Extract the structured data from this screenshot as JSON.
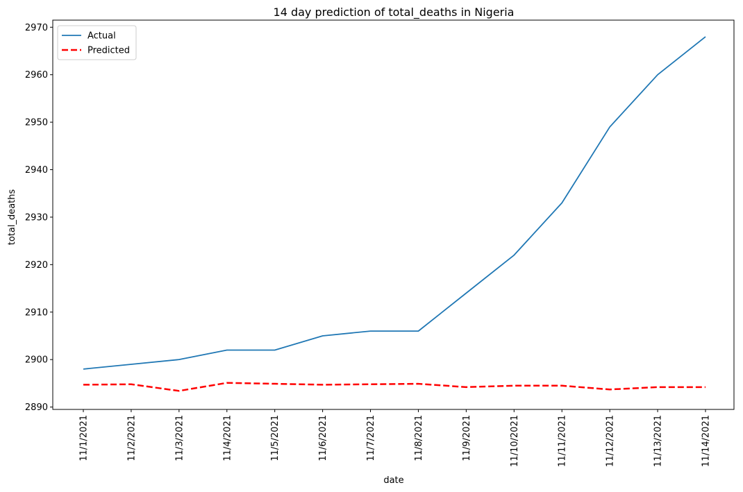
{
  "chart_data": {
    "type": "line",
    "title": "14 day prediction of total_deaths in Nigeria",
    "xlabel": "date",
    "ylabel": "total_deaths",
    "categories": [
      "11/1/2021",
      "11/2/2021",
      "11/3/2021",
      "11/4/2021",
      "11/5/2021",
      "11/6/2021",
      "11/7/2021",
      "11/8/2021",
      "11/9/2021",
      "11/10/2021",
      "11/11/2021",
      "11/12/2021",
      "11/13/2021",
      "11/14/2021"
    ],
    "yticks": [
      2890,
      2900,
      2910,
      2920,
      2930,
      2940,
      2950,
      2960,
      2970
    ],
    "ylim": [
      2889.5,
      2971.5
    ],
    "legend_position": "upper left",
    "series": [
      {
        "name": "Actual",
        "color": "#1f77b4",
        "style": "solid",
        "values": [
          2898,
          2899,
          2900,
          2902,
          2902,
          2905,
          2906,
          2906,
          2914,
          2922,
          2933,
          2949,
          2960,
          2968
        ]
      },
      {
        "name": "Predicted",
        "color": "#ff0000",
        "style": "dashed",
        "values": [
          2894.7,
          2894.8,
          2893.4,
          2895.1,
          2894.9,
          2894.7,
          2894.8,
          2894.9,
          2894.2,
          2894.5,
          2894.5,
          2893.7,
          2894.2,
          2894.2
        ]
      }
    ]
  }
}
